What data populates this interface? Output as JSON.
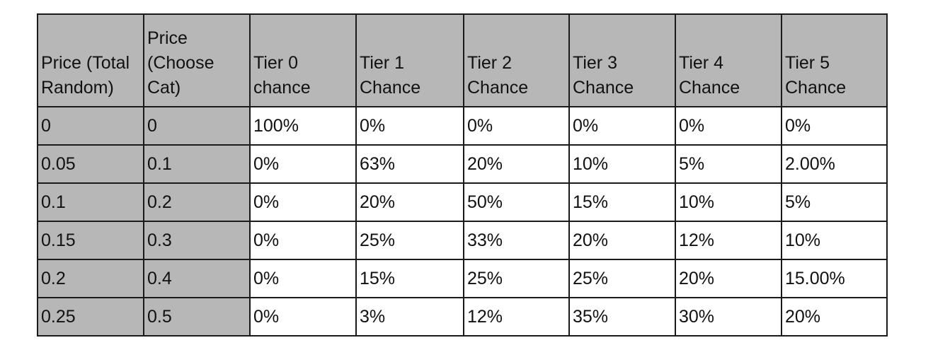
{
  "table": {
    "headers": [
      "Price (Total Random)",
      "Price (Choose Cat)",
      "Tier 0 chance",
      "Tier 1 Chance",
      "Tier 2 Chance",
      "Tier 3 Chance",
      "Tier 4 Chance",
      "Tier 5 Chance"
    ],
    "rows": [
      [
        "0",
        "0",
        "100%",
        "0%",
        "0%",
        "0%",
        "0%",
        "0%"
      ],
      [
        "0.05",
        "0.1",
        "0%",
        "63%",
        "20%",
        "10%",
        "5%",
        "2.00%"
      ],
      [
        "0.1",
        "0.2",
        "0%",
        "20%",
        "50%",
        "15%",
        "10%",
        "5%"
      ],
      [
        "0.15",
        "0.3",
        "0%",
        "25%",
        "33%",
        "20%",
        "12%",
        "10%"
      ],
      [
        "0.2",
        "0.4",
        "0%",
        "15%",
        "25%",
        "25%",
        "20%",
        "15.00%"
      ],
      [
        "0.25",
        "0.5",
        "0%",
        "3%",
        "12%",
        "35%",
        "30%",
        "20%"
      ]
    ]
  },
  "colors": {
    "header_fill": "#b7b7b7",
    "price_column_fill": "#b7b7b7",
    "border": "#1a1a1a"
  }
}
